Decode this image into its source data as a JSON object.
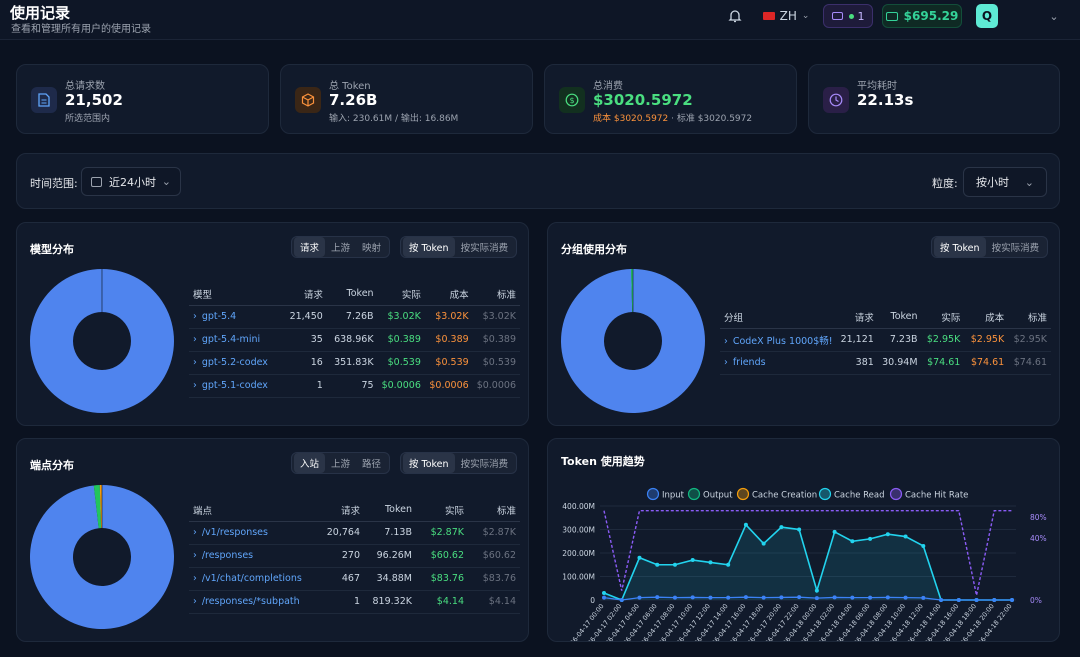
{
  "header": {
    "title": "使用记录",
    "subtitle": "查看和管理所有用户的使用记录",
    "lang": "ZH",
    "sub_count": "1",
    "balance": "$695.29",
    "avatar_letter": "Q"
  },
  "stats": [
    {
      "label": "总请求数",
      "value": "21,502",
      "sub": "所选范围内",
      "color": "#60a5fa"
    },
    {
      "label": "总 Token",
      "value": "7.26B",
      "sub": "输入: 230.61M / 输出: 16.86M",
      "color": "#fb923c"
    },
    {
      "label": "总消费",
      "value": "$3020.5972",
      "sub_cost": "成本 $3020.5972",
      "sub_std": " · 标准 $3020.5972",
      "color": "#4ade80"
    },
    {
      "label": "平均耗时",
      "value": "22.13s",
      "color": "#a78bfa"
    }
  ],
  "filters": {
    "time_label": "时间范围:",
    "time_value": "近24小时",
    "gran_label": "粒度:",
    "gran_value": "按小时"
  },
  "model_dist": {
    "title": "模型分布",
    "tabs": [
      "请求",
      "上游",
      "映射"
    ],
    "modes": [
      "按 Token",
      "按实际消费"
    ],
    "headers": [
      "模型",
      "请求",
      "Token",
      "实际",
      "成本",
      "标准"
    ],
    "rows": [
      {
        "name": "gpt-5.4",
        "req": "21,450",
        "token": "7.26B",
        "actual": "$3.02K",
        "cost": "$3.02K",
        "std": "$3.02K"
      },
      {
        "name": "gpt-5.4-mini",
        "req": "35",
        "token": "638.96K",
        "actual": "$0.389",
        "cost": "$0.389",
        "std": "$0.389"
      },
      {
        "name": "gpt-5.2-codex",
        "req": "16",
        "token": "351.83K",
        "actual": "$0.539",
        "cost": "$0.539",
        "std": "$0.539"
      },
      {
        "name": "gpt-5.1-codex",
        "req": "1",
        "token": "75",
        "actual": "$0.0006",
        "cost": "$0.0006",
        "std": "$0.0006"
      }
    ]
  },
  "group_dist": {
    "title": "分组使用分布",
    "modes": [
      "按 Token",
      "按实际消费"
    ],
    "headers": [
      "分组",
      "请求",
      "Token",
      "实际",
      "成本",
      "标准"
    ],
    "rows": [
      {
        "name": "CodeX Plus 1000$畅!",
        "req": "21,121",
        "token": "7.23B",
        "actual": "$2.95K",
        "cost": "$2.95K",
        "std": "$2.95K"
      },
      {
        "name": "friends",
        "req": "381",
        "token": "30.94M",
        "actual": "$74.61",
        "cost": "$74.61",
        "std": "$74.61"
      }
    ]
  },
  "endpoint_dist": {
    "title": "端点分布",
    "tabs": [
      "入站",
      "上游",
      "路径"
    ],
    "modes": [
      "按 Token",
      "按实际消费"
    ],
    "headers": [
      "端点",
      "请求",
      "Token",
      "实际",
      "标准"
    ],
    "rows": [
      {
        "name": "/v1/responses",
        "req": "20,764",
        "token": "7.13B",
        "actual": "$2.87K",
        "std": "$2.87K"
      },
      {
        "name": "/responses",
        "req": "270",
        "token": "96.26M",
        "actual": "$60.62",
        "std": "$60.62"
      },
      {
        "name": "/v1/chat/completions",
        "req": "467",
        "token": "34.88M",
        "actual": "$83.76",
        "std": "$83.76"
      },
      {
        "name": "/responses/*subpath",
        "req": "1",
        "token": "819.32K",
        "actual": "$4.14",
        "std": "$4.14"
      }
    ]
  },
  "trend": {
    "title": "Token 使用趋势",
    "legend": [
      "Input",
      "Output",
      "Cache Creation",
      "Cache Read",
      "Cache Hit Rate"
    ],
    "colors": [
      "#3b82f6",
      "#10b981",
      "#f59e0b",
      "#22d3ee",
      "#8b5cf6"
    ]
  },
  "chart_data": [
    {
      "type": "pie",
      "title": "模型分布",
      "categories": [
        "gpt-5.4",
        "gpt-5.4-mini",
        "gpt-5.2-codex",
        "gpt-5.1-codex"
      ],
      "values": [
        7260000000,
        638960,
        351830,
        75
      ]
    },
    {
      "type": "pie",
      "title": "分组使用分布",
      "categories": [
        "CodeX Plus 1000$畅!",
        "friends"
      ],
      "values": [
        7230000000,
        30940000
      ]
    },
    {
      "type": "pie",
      "title": "端点分布",
      "categories": [
        "/v1/responses",
        "/responses",
        "/v1/chat/completions",
        "/responses/*subpath"
      ],
      "values": [
        7130000000,
        96260000,
        34880000,
        819320
      ]
    },
    {
      "type": "line",
      "title": "Token 使用趋势",
      "x": [
        "2026-04-17 00:00",
        "2026-04-17 02:00",
        "2026-04-17 04:00",
        "2026-04-17 06:00",
        "2026-04-17 08:00",
        "2026-04-17 10:00",
        "2026-04-17 12:00",
        "2026-04-17 14:00",
        "2026-04-17 16:00",
        "2026-04-17 18:00",
        "2026-04-17 20:00",
        "2026-04-17 22:00",
        "2026-04-18 00:00",
        "2026-04-18 02:00",
        "2026-04-18 04:00",
        "2026-04-18 06:00",
        "2026-04-18 08:00",
        "2026-04-18 10:00",
        "2026-04-18 12:00",
        "2026-04-18 14:00",
        "2026-04-18 16:00",
        "2026-04-18 18:00",
        "2026-04-18 20:00",
        "2026-04-18 22:00"
      ],
      "y_ticks": [
        "400.00M",
        "300.00M",
        "200.00M",
        "100.00M",
        "0"
      ],
      "y2_ticks": [
        "80%",
        "40%",
        "0%"
      ],
      "ylim": [
        0,
        400000000
      ],
      "series": [
        {
          "name": "Cache Read",
          "values": [
            30000000,
            0,
            180000000,
            150000000,
            150000000,
            170000000,
            160000000,
            150000000,
            320000000,
            240000000,
            310000000,
            300000000,
            40000000,
            290000000,
            250000000,
            260000000,
            280000000,
            270000000,
            230000000,
            0,
            0,
            0,
            0,
            0
          ]
        },
        {
          "name": "Input",
          "values": [
            10000000,
            0,
            10000000,
            12000000,
            10000000,
            11000000,
            10000000,
            10000000,
            12000000,
            10000000,
            11000000,
            12000000,
            8000000,
            11000000,
            10000000,
            10000000,
            11000000,
            10000000,
            9000000,
            0,
            0,
            0,
            0,
            0
          ]
        },
        {
          "name": "Cache Hit Rate",
          "values": [
            95,
            10,
            95,
            95,
            95,
            95,
            95,
            95,
            95,
            95,
            95,
            95,
            95,
            95,
            95,
            95,
            95,
            95,
            95,
            95,
            95,
            5,
            95,
            95
          ]
        }
      ]
    }
  ]
}
